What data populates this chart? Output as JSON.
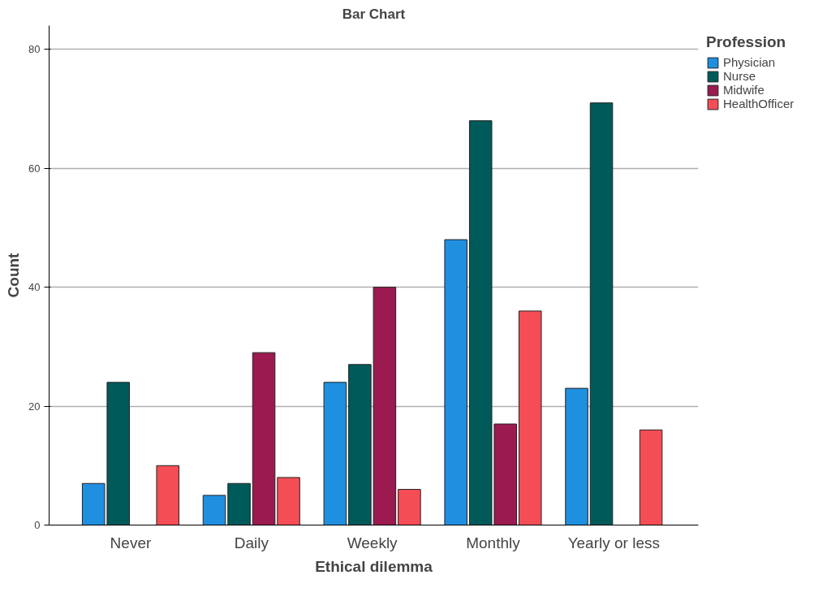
{
  "chart_data": {
    "type": "bar",
    "title": "Bar Chart",
    "xlabel": "Ethical dilemma",
    "ylabel": "Count",
    "legend_title": "Profession",
    "categories": [
      "Never",
      "Daily",
      "Weekly",
      "Monthly",
      "Yearly or less"
    ],
    "series": [
      {
        "name": "Physician",
        "color": "#1f8fe0",
        "values": [
          7,
          5,
          24,
          48,
          23
        ]
      },
      {
        "name": "Nurse",
        "color": "#005a5a",
        "values": [
          24,
          7,
          27,
          68,
          71
        ]
      },
      {
        "name": "Midwife",
        "color": "#9b1a4f",
        "values": [
          null,
          29,
          40,
          17,
          null
        ]
      },
      {
        "name": "HealthOfficer",
        "color": "#f54d55",
        "values": [
          10,
          8,
          6,
          36,
          16
        ]
      }
    ],
    "ylim": [
      0,
      84
    ],
    "yticks": [
      0,
      20,
      40,
      60,
      80
    ],
    "grid": "y",
    "legend": "top right"
  }
}
